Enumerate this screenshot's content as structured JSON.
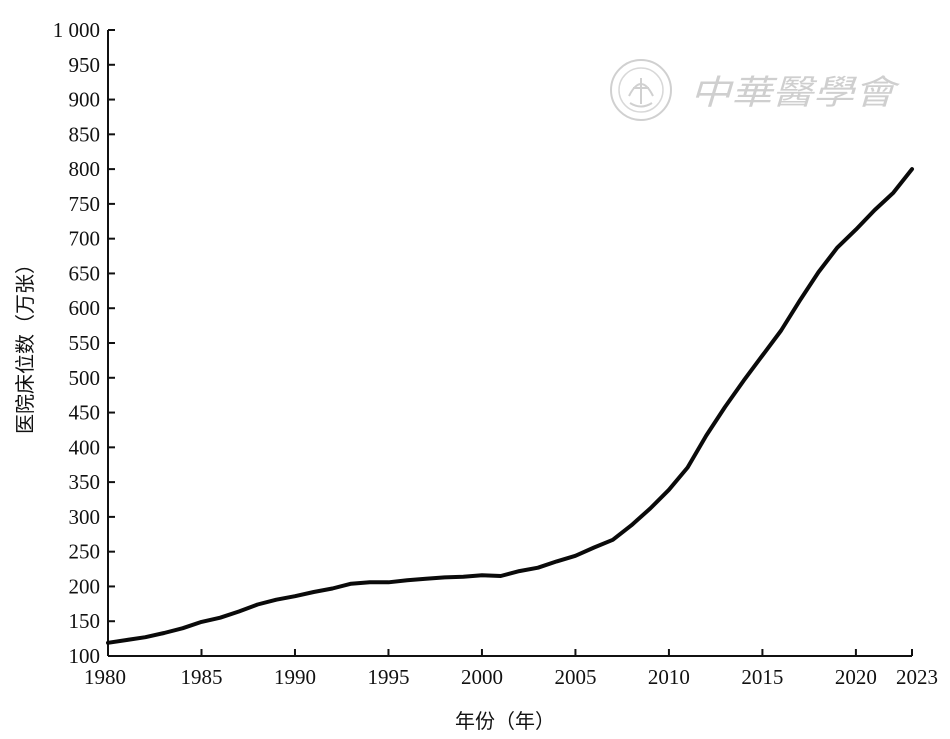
{
  "chart_data": {
    "type": "line",
    "title": "",
    "xlabel": "年份（年）",
    "ylabel": "医院床位数（万张）",
    "xlim": [
      1980,
      2023
    ],
    "ylim": [
      100,
      1000
    ],
    "grid": false,
    "x_ticks": [
      1980,
      1985,
      1990,
      1995,
      2000,
      2005,
      2010,
      2015,
      2020,
      2023
    ],
    "y_ticks": [
      100,
      150,
      200,
      250,
      300,
      350,
      400,
      450,
      500,
      550,
      600,
      650,
      700,
      750,
      800,
      850,
      900,
      950,
      1000
    ],
    "y_tick_labels": [
      "100",
      "150",
      "200",
      "250",
      "300",
      "350",
      "400",
      "450",
      "500",
      "550",
      "600",
      "650",
      "700",
      "750",
      "800",
      "850",
      "900",
      "950",
      "1 000"
    ],
    "series": [
      {
        "x": [
          1980,
          1981,
          1982,
          1983,
          1984,
          1985,
          1986,
          1987,
          1988,
          1989,
          1990,
          1991,
          1992,
          1993,
          1994,
          1995,
          1996,
          1997,
          1998,
          1999,
          2000,
          2001,
          2002,
          2003,
          2004,
          2005,
          2006,
          2007,
          2008,
          2009,
          2010,
          2011,
          2012,
          2013,
          2014,
          2015,
          2016,
          2017,
          2018,
          2019,
          2020,
          2021,
          2022,
          2023
        ],
        "y": [
          119,
          123,
          127,
          133,
          140,
          149,
          155,
          164,
          174,
          181,
          186,
          192,
          197,
          204,
          206,
          206,
          209,
          211,
          213,
          214,
          216,
          215,
          222,
          227,
          236,
          244,
          256,
          267,
          288,
          312,
          339,
          371,
          417,
          458,
          496,
          532,
          568,
          611,
          652,
          687,
          713,
          741,
          766,
          800
        ]
      }
    ],
    "color": "#0a0a0a"
  },
  "watermark": {
    "text": "中華醫學會",
    "logo": "seal-emblem"
  }
}
